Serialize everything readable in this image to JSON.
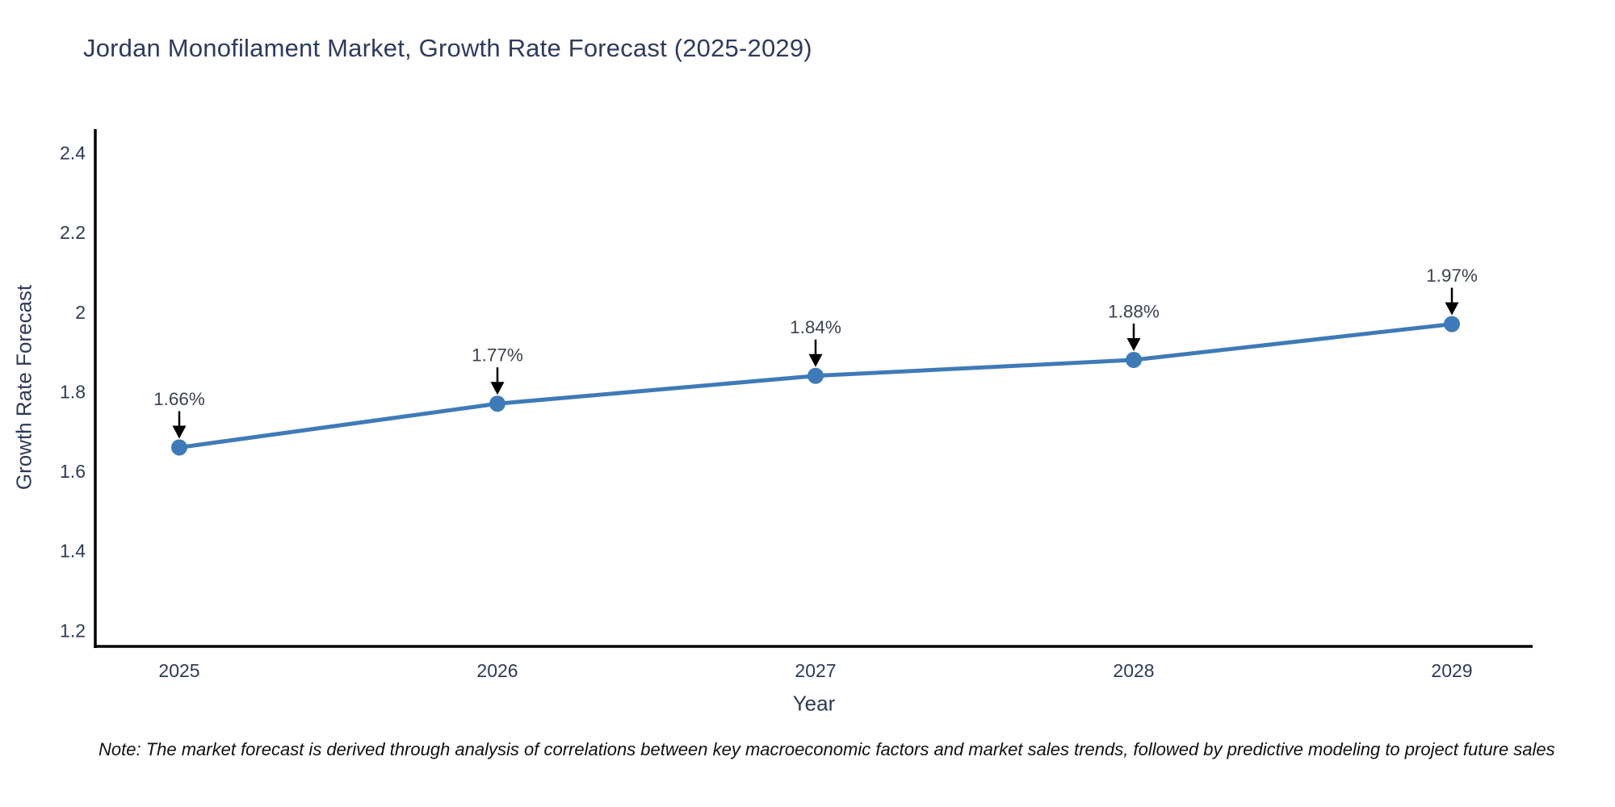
{
  "title": "Jordan Monofilament Market, Growth Rate Forecast (2025-2029)",
  "note": "Note: The market forecast is derived through analysis of correlations between key macroeconomic factors and market sales trends, followed by predictive modeling to project future sales",
  "chart_data": {
    "type": "line",
    "title": "Jordan Monofilament Market, Growth Rate Forecast (2025-2029)",
    "xlabel": "Year",
    "ylabel": "Growth Rate Forecast",
    "categories": [
      "2025",
      "2026",
      "2027",
      "2028",
      "2029"
    ],
    "series": [
      {
        "name": "Growth Rate Forecast",
        "values": [
          1.66,
          1.77,
          1.84,
          1.88,
          1.97
        ],
        "point_labels": [
          "1.66%",
          "1.77%",
          "1.84%",
          "1.88%",
          "1.97%"
        ]
      }
    ],
    "ylim": [
      1.16,
      2.46
    ],
    "yticks": [
      1.2,
      1.4,
      1.6,
      1.8,
      2,
      2.2,
      2.4
    ],
    "ytick_labels": [
      "1.2",
      "1.4",
      "1.6",
      "1.8",
      "2",
      "2.2",
      "2.4"
    ],
    "grid": false,
    "legend_position": "none",
    "annotation_style": "arrow-labels-above-points",
    "colors": {
      "line": "#3f7ab8",
      "marker": "#3f7ab8",
      "axis": "#000000",
      "title_text": "#2e3b5e",
      "tick_text": "#2e3b56",
      "axis_label_text": "#2e3b56",
      "annotation_text": "#3a4350",
      "arrow": "#000000",
      "note_text": "#111111",
      "background": "#ffffff"
    }
  }
}
